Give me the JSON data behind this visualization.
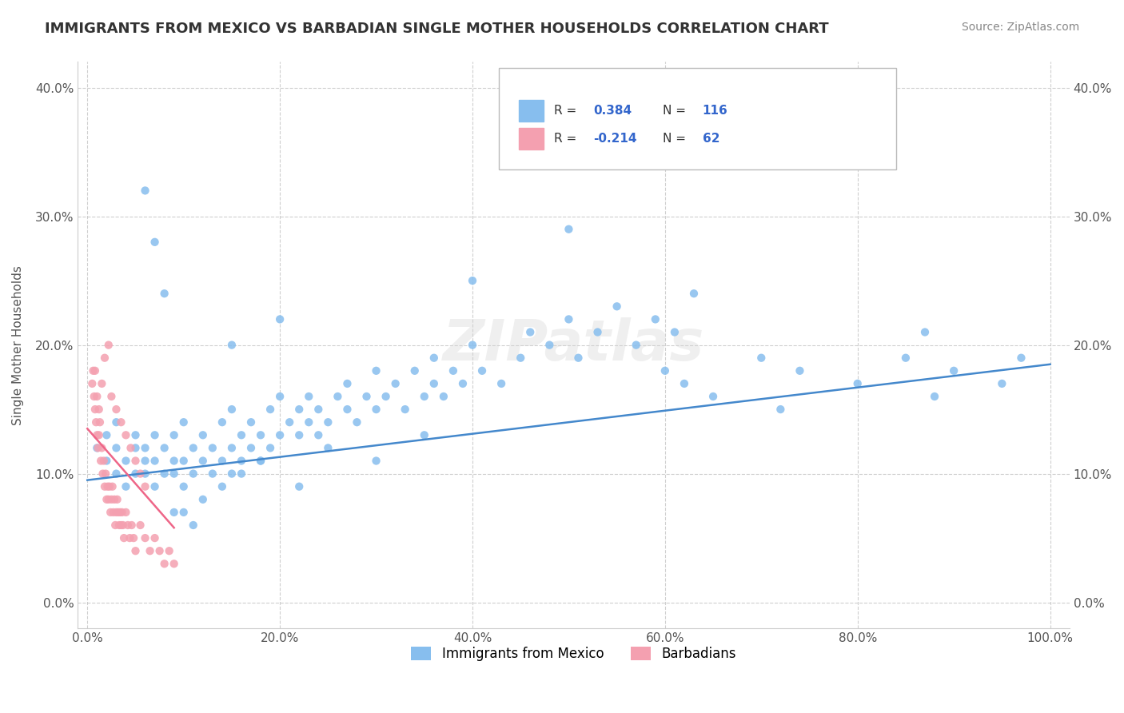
{
  "title": "IMMIGRANTS FROM MEXICO VS BARBADIAN SINGLE MOTHER HOUSEHOLDS CORRELATION CHART",
  "source": "Source: ZipAtlas.com",
  "xlabel_label": "Immigrants from Mexico",
  "ylabel_label": "Single Mother Households",
  "legend_label1": "Immigrants from Mexico",
  "legend_label2": "Barbadians",
  "r1": 0.384,
  "n1": 116,
  "r2": -0.214,
  "n2": 62,
  "color_blue": "#87BEEE",
  "color_pink": "#F4A0B0",
  "line_color_blue": "#4488CC",
  "line_color_pink": "#EE6688",
  "watermark": "ZIPatlas",
  "xlim": [
    0.0,
    1.0
  ],
  "ylim": [
    -0.02,
    0.42
  ],
  "blue_scatter_x": [
    0.01,
    0.02,
    0.02,
    0.03,
    0.03,
    0.03,
    0.04,
    0.04,
    0.05,
    0.05,
    0.05,
    0.06,
    0.06,
    0.06,
    0.07,
    0.07,
    0.07,
    0.08,
    0.08,
    0.09,
    0.09,
    0.09,
    0.1,
    0.1,
    0.1,
    0.11,
    0.11,
    0.12,
    0.12,
    0.13,
    0.13,
    0.14,
    0.14,
    0.15,
    0.15,
    0.15,
    0.16,
    0.16,
    0.17,
    0.17,
    0.18,
    0.18,
    0.19,
    0.19,
    0.2,
    0.2,
    0.21,
    0.22,
    0.22,
    0.23,
    0.23,
    0.24,
    0.24,
    0.25,
    0.26,
    0.27,
    0.27,
    0.28,
    0.29,
    0.3,
    0.3,
    0.31,
    0.32,
    0.33,
    0.34,
    0.35,
    0.36,
    0.36,
    0.37,
    0.38,
    0.39,
    0.4,
    0.41,
    0.43,
    0.45,
    0.46,
    0.48,
    0.5,
    0.51,
    0.53,
    0.55,
    0.57,
    0.59,
    0.6,
    0.61,
    0.62,
    0.63,
    0.65,
    0.7,
    0.72,
    0.74,
    0.8,
    0.85,
    0.87,
    0.88,
    0.9,
    0.95,
    0.97,
    0.5,
    0.4,
    0.2,
    0.15,
    0.06,
    0.07,
    0.08,
    0.09,
    0.1,
    0.11,
    0.12,
    0.14,
    0.16,
    0.18,
    0.22,
    0.25,
    0.3,
    0.35
  ],
  "blue_scatter_y": [
    0.12,
    0.11,
    0.13,
    0.1,
    0.12,
    0.14,
    0.09,
    0.11,
    0.1,
    0.12,
    0.13,
    0.1,
    0.11,
    0.12,
    0.09,
    0.11,
    0.13,
    0.1,
    0.12,
    0.11,
    0.1,
    0.13,
    0.09,
    0.11,
    0.14,
    0.1,
    0.12,
    0.11,
    0.13,
    0.1,
    0.12,
    0.11,
    0.14,
    0.1,
    0.12,
    0.15,
    0.11,
    0.13,
    0.12,
    0.14,
    0.11,
    0.13,
    0.12,
    0.15,
    0.13,
    0.16,
    0.14,
    0.13,
    0.15,
    0.14,
    0.16,
    0.13,
    0.15,
    0.14,
    0.16,
    0.15,
    0.17,
    0.14,
    0.16,
    0.15,
    0.18,
    0.16,
    0.17,
    0.15,
    0.18,
    0.16,
    0.19,
    0.17,
    0.16,
    0.18,
    0.17,
    0.2,
    0.18,
    0.17,
    0.19,
    0.21,
    0.2,
    0.22,
    0.19,
    0.21,
    0.23,
    0.2,
    0.22,
    0.18,
    0.21,
    0.17,
    0.24,
    0.16,
    0.19,
    0.15,
    0.18,
    0.17,
    0.19,
    0.21,
    0.16,
    0.18,
    0.17,
    0.19,
    0.29,
    0.25,
    0.22,
    0.2,
    0.32,
    0.28,
    0.24,
    0.07,
    0.07,
    0.06,
    0.08,
    0.09,
    0.1,
    0.11,
    0.09,
    0.12,
    0.11,
    0.13
  ],
  "pink_scatter_x": [
    0.005,
    0.006,
    0.007,
    0.008,
    0.009,
    0.01,
    0.011,
    0.012,
    0.013,
    0.014,
    0.015,
    0.016,
    0.017,
    0.018,
    0.019,
    0.02,
    0.021,
    0.022,
    0.023,
    0.024,
    0.025,
    0.026,
    0.027,
    0.028,
    0.029,
    0.03,
    0.031,
    0.032,
    0.033,
    0.034,
    0.035,
    0.036,
    0.037,
    0.038,
    0.04,
    0.042,
    0.044,
    0.046,
    0.048,
    0.05,
    0.055,
    0.06,
    0.065,
    0.07,
    0.075,
    0.08,
    0.085,
    0.09,
    0.01,
    0.012,
    0.008,
    0.015,
    0.018,
    0.022,
    0.025,
    0.03,
    0.035,
    0.04,
    0.045,
    0.05,
    0.055,
    0.06
  ],
  "pink_scatter_y": [
    0.17,
    0.18,
    0.16,
    0.15,
    0.14,
    0.13,
    0.12,
    0.13,
    0.14,
    0.11,
    0.12,
    0.1,
    0.11,
    0.09,
    0.1,
    0.08,
    0.09,
    0.08,
    0.09,
    0.07,
    0.08,
    0.09,
    0.07,
    0.08,
    0.06,
    0.07,
    0.08,
    0.07,
    0.06,
    0.07,
    0.06,
    0.07,
    0.06,
    0.05,
    0.07,
    0.06,
    0.05,
    0.06,
    0.05,
    0.04,
    0.06,
    0.05,
    0.04,
    0.05,
    0.04,
    0.03,
    0.04,
    0.03,
    0.16,
    0.15,
    0.18,
    0.17,
    0.19,
    0.2,
    0.16,
    0.15,
    0.14,
    0.13,
    0.12,
    0.11,
    0.1,
    0.09
  ]
}
